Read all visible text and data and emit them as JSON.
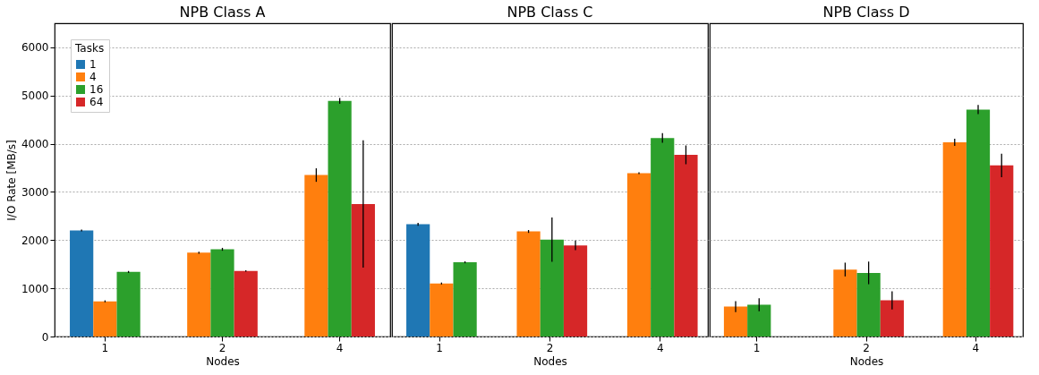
{
  "chart_data": [
    {
      "type": "bar",
      "title": "NPB Class A",
      "xlabel": "Nodes",
      "ylabel": "I/O Rate [MB/s]",
      "categories": [
        "1",
        "2",
        "4"
      ],
      "ylim": [
        0,
        6500
      ],
      "yticks": [
        0,
        1000,
        2000,
        3000,
        4000,
        5000,
        6000
      ],
      "grid": "y",
      "legend": "top left",
      "legend_title": "Tasks",
      "series": [
        {
          "name": "1",
          "color": "#1f77b4",
          "values": [
            2200,
            null,
            null
          ],
          "errors": [
            20,
            null,
            null
          ]
        },
        {
          "name": "4",
          "color": "#ff7f0e",
          "values": [
            730,
            1740,
            3350
          ],
          "errors": [
            20,
            20,
            140
          ]
        },
        {
          "name": "16",
          "color": "#2ca02c",
          "values": [
            1340,
            1810,
            4890
          ],
          "errors": [
            20,
            30,
            60
          ]
        },
        {
          "name": "64",
          "color": "#d62728",
          "values": [
            null,
            1360,
            2750
          ],
          "errors": [
            null,
            15,
            1320
          ]
        }
      ]
    },
    {
      "type": "bar",
      "title": "NPB Class C",
      "xlabel": "Nodes",
      "categories": [
        "1",
        "2",
        "4"
      ],
      "ylim": [
        0,
        6500
      ],
      "yticks": [
        0,
        1000,
        2000,
        3000,
        4000,
        5000,
        6000
      ],
      "grid": "y",
      "tick_labels": "x",
      "series": [
        {
          "color": "#1f77b4",
          "values": [
            2330,
            null,
            null
          ],
          "errors": [
            30,
            null,
            null
          ]
        },
        {
          "color": "#ff7f0e",
          "values": [
            1100,
            2180,
            3390
          ],
          "errors": [
            20,
            30,
            20
          ]
        },
        {
          "color": "#2ca02c",
          "values": [
            1540,
            2010,
            4120
          ],
          "errors": [
            20,
            460,
            100
          ]
        },
        {
          "color": "#d62728",
          "values": [
            null,
            1890,
            3770
          ],
          "errors": [
            null,
            100,
            195
          ]
        }
      ]
    },
    {
      "type": "bar",
      "title": "NPB Class D",
      "xlabel": "Nodes",
      "categories": [
        "1",
        "2",
        "4"
      ],
      "ylim": [
        0,
        6500
      ],
      "yticks": [
        0,
        1000,
        2000,
        3000,
        4000,
        5000,
        6000
      ],
      "grid": "y",
      "tick_labels": "x",
      "series": [
        {
          "color": "#1f77b4",
          "values": [
            null,
            null,
            null
          ]
        },
        {
          "color": "#ff7f0e",
          "values": [
            620,
            1390,
            4030
          ],
          "errors": [
            113,
            143,
            73
          ]
        },
        {
          "color": "#2ca02c",
          "values": [
            660,
            1320,
            4710
          ],
          "errors": [
            134,
            235,
            95
          ]
        },
        {
          "color": "#d62728",
          "values": [
            null,
            750,
            3550
          ],
          "errors": [
            null,
            190,
            244
          ]
        }
      ]
    }
  ]
}
